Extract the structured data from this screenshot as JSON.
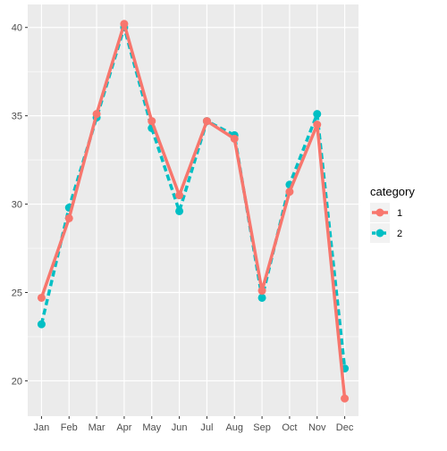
{
  "chart_data": {
    "type": "line",
    "categories": [
      "Jan",
      "Feb",
      "Mar",
      "Apr",
      "May",
      "Jun",
      "Jul",
      "Aug",
      "Sep",
      "Oct",
      "Nov",
      "Dec"
    ],
    "series": [
      {
        "name": "1",
        "color": "#F8766D",
        "line_style": "solid",
        "values": [
          24.7,
          29.2,
          35.1,
          40.2,
          34.7,
          30.5,
          34.7,
          33.7,
          25.1,
          30.7,
          34.5,
          19.0
        ]
      },
      {
        "name": "2",
        "color": "#00BFC4",
        "line_style": "dashed",
        "values": [
          23.2,
          29.8,
          34.9,
          40.0,
          34.3,
          29.6,
          34.7,
          33.9,
          24.7,
          31.1,
          35.1,
          20.7
        ]
      }
    ],
    "yticks": [
      "20",
      "25",
      "30",
      "35",
      "40"
    ],
    "ylim": [
      18.0,
      41.3
    ],
    "title": "",
    "xlabel": "",
    "ylabel": "",
    "legend": {
      "title": "category",
      "position": "right"
    },
    "grid": true,
    "panel_background": "#EBEBEB"
  }
}
